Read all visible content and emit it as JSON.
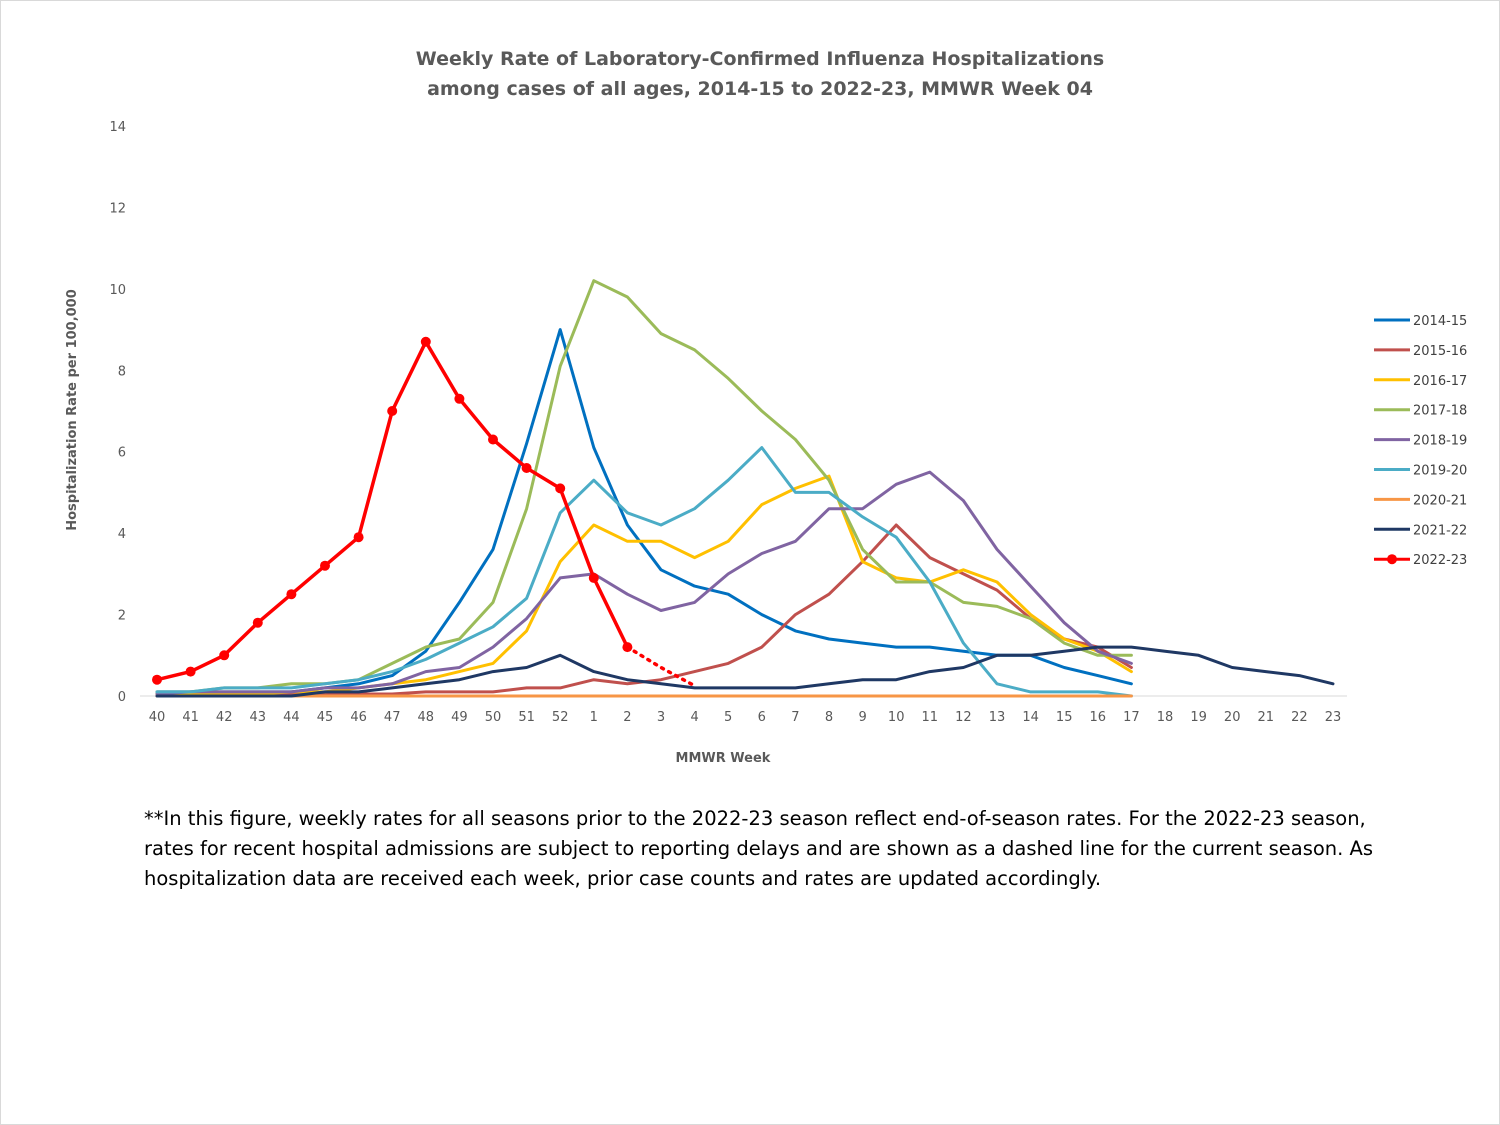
{
  "chart_data": {
    "type": "line",
    "title": [
      "Weekly Rate of Laboratory-Confirmed Influenza Hospitalizations",
      "among cases of all ages, 2014-15 to 2022-23, MMWR Week 04"
    ],
    "xlabel": "MMWR Week",
    "ylabel": "Hospitalization Rate per 100,000",
    "ylim": [
      0,
      14
    ],
    "yticks": [
      0,
      2,
      4,
      6,
      8,
      10,
      12,
      14
    ],
    "grid": false,
    "legend_position": "right",
    "categories": [
      "40",
      "41",
      "42",
      "43",
      "44",
      "45",
      "46",
      "47",
      "48",
      "49",
      "50",
      "51",
      "52",
      "1",
      "2",
      "3",
      "4",
      "5",
      "6",
      "7",
      "8",
      "9",
      "10",
      "11",
      "12",
      "13",
      "14",
      "15",
      "16",
      "17",
      "18",
      "19",
      "20",
      "21",
      "22",
      "23"
    ],
    "series": [
      {
        "name": "2014-15",
        "color": "#0070c0",
        "values": [
          0.1,
          0.1,
          0.1,
          0.1,
          0.1,
          0.2,
          0.3,
          0.5,
          1.1,
          2.3,
          3.6,
          6.2,
          9.0,
          6.1,
          4.2,
          3.1,
          2.7,
          2.5,
          2.0,
          1.6,
          1.4,
          1.3,
          1.2,
          1.2,
          1.1,
          1.0,
          1.0,
          0.7,
          0.5,
          0.3,
          null,
          null,
          null,
          null,
          null,
          null
        ]
      },
      {
        "name": "2015-16",
        "color": "#c0504d",
        "values": [
          0.05,
          0.05,
          0.05,
          0.05,
          0.05,
          0.05,
          0.05,
          0.05,
          0.1,
          0.1,
          0.1,
          0.2,
          0.2,
          0.4,
          0.3,
          0.4,
          0.6,
          0.8,
          1.2,
          2.0,
          2.5,
          3.3,
          4.2,
          3.4,
          3.0,
          2.6,
          1.9,
          1.4,
          1.2,
          0.7,
          null,
          null,
          null,
          null,
          null,
          null
        ]
      },
      {
        "name": "2016-17",
        "color": "#ffc000",
        "values": [
          0.05,
          0.05,
          0.05,
          0.05,
          0.1,
          0.1,
          0.2,
          0.3,
          0.4,
          0.6,
          0.8,
          1.6,
          3.3,
          4.2,
          3.8,
          3.8,
          3.4,
          3.8,
          4.7,
          5.1,
          5.4,
          3.3,
          2.9,
          2.8,
          3.1,
          2.8,
          2.0,
          1.4,
          1.1,
          0.6,
          null,
          null,
          null,
          null,
          null,
          null
        ]
      },
      {
        "name": "2017-18",
        "color": "#9bbb59",
        "values": [
          0.1,
          0.1,
          0.2,
          0.2,
          0.3,
          0.3,
          0.4,
          0.8,
          1.2,
          1.4,
          2.3,
          4.6,
          8.1,
          10.2,
          9.8,
          8.9,
          8.5,
          7.8,
          7.0,
          6.3,
          5.3,
          3.6,
          2.8,
          2.8,
          2.3,
          2.2,
          1.9,
          1.3,
          1.0,
          1.0,
          null,
          null,
          null,
          null,
          null,
          null
        ]
      },
      {
        "name": "2018-19",
        "color": "#8064a2",
        "values": [
          0.05,
          0.1,
          0.1,
          0.1,
          0.1,
          0.2,
          0.2,
          0.3,
          0.6,
          0.7,
          1.2,
          1.9,
          2.9,
          3.0,
          2.5,
          2.1,
          2.3,
          3.0,
          3.5,
          3.8,
          4.6,
          4.6,
          5.2,
          5.5,
          4.8,
          3.6,
          2.7,
          1.8,
          1.1,
          0.8,
          null,
          null,
          null,
          null,
          null,
          null
        ]
      },
      {
        "name": "2019-20",
        "color": "#4bacc6",
        "values": [
          0.1,
          0.1,
          0.2,
          0.2,
          0.2,
          0.3,
          0.4,
          0.6,
          0.9,
          1.3,
          1.7,
          2.4,
          4.5,
          5.3,
          4.5,
          4.2,
          4.6,
          5.3,
          6.1,
          5.0,
          5.0,
          4.4,
          3.9,
          2.8,
          1.3,
          0.3,
          0.1,
          0.1,
          0.1,
          0.0,
          null,
          null,
          null,
          null,
          null,
          null
        ]
      },
      {
        "name": "2020-21",
        "color": "#f79646",
        "values": [
          0.0,
          0.0,
          0.0,
          0.0,
          0.0,
          0.0,
          0.0,
          0.0,
          0.0,
          0.0,
          0.0,
          0.0,
          0.0,
          0.0,
          0.0,
          0.0,
          0.0,
          0.0,
          0.0,
          0.0,
          0.0,
          0.0,
          0.0,
          0.0,
          0.0,
          0.0,
          0.0,
          0.0,
          0.0,
          0.0,
          null,
          null,
          null,
          null,
          null,
          null
        ]
      },
      {
        "name": "2021-22",
        "color": "#1f3864",
        "values": [
          0.0,
          0.0,
          0.0,
          0.0,
          0.0,
          0.1,
          0.1,
          0.2,
          0.3,
          0.4,
          0.6,
          0.7,
          1.0,
          0.6,
          0.4,
          0.3,
          0.2,
          0.2,
          0.2,
          0.2,
          0.3,
          0.4,
          0.4,
          0.6,
          0.7,
          1.0,
          1.0,
          1.1,
          1.2,
          1.2,
          1.1,
          1.0,
          0.7,
          0.6,
          0.5,
          0.3
        ]
      },
      {
        "name": "2022-23",
        "color": "#ff0000",
        "values": [
          0.4,
          0.6,
          1.0,
          1.8,
          2.5,
          3.2,
          3.9,
          7.0,
          8.7,
          7.3,
          6.3,
          5.6,
          5.1,
          2.9,
          1.2,
          null,
          null,
          null,
          null,
          null,
          null,
          null,
          null,
          null,
          null,
          null,
          null,
          null,
          null,
          null,
          null,
          null,
          null,
          null,
          null,
          null
        ],
        "markers": true,
        "dashed_tail": [
          1.2,
          0.7,
          0.25
        ]
      }
    ]
  },
  "footnote": "**In this figure, weekly rates for all seasons prior to the 2022-23 season reflect end-of-season rates. For the 2022-23 season, rates for recent hospital admissions are subject to reporting delays and are shown as a dashed line for the current season. As hospitalization data are received each week, prior case counts and rates are updated accordingly."
}
